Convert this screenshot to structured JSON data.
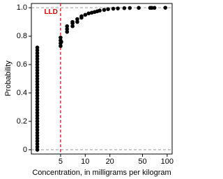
{
  "chart_data": {
    "type": "scatter",
    "x_label": "Concentration, in milligrams per kilogram",
    "y_label": "Probability",
    "log_x": true,
    "color": "#000000",
    "x": [
      2.6,
      2.6,
      2.6,
      2.6,
      2.6,
      2.6,
      2.6,
      2.6,
      2.6,
      2.6,
      2.6,
      2.6,
      2.6,
      2.6,
      2.6,
      2.6,
      2.6,
      2.6,
      2.6,
      2.6,
      2.6,
      2.6,
      2.6,
      2.6,
      2.6,
      2.6,
      2.6,
      2.6,
      2.6,
      2.6,
      2.6,
      2.6,
      2.6,
      2.6,
      2.6,
      2.6,
      2.6,
      5,
      5,
      5,
      5,
      5.1,
      6,
      6,
      6,
      7,
      7,
      7,
      8,
      8,
      9,
      9,
      10,
      11,
      12,
      13,
      14,
      15,
      17,
      19,
      22,
      25,
      30,
      35,
      45,
      62,
      65,
      70,
      95
    ],
    "y": [
      0,
      0.02,
      0.04,
      0.06,
      0.08,
      0.1,
      0.12,
      0.14,
      0.16,
      0.18,
      0.2,
      0.22,
      0.24,
      0.26,
      0.28,
      0.3,
      0.32,
      0.34,
      0.36,
      0.38,
      0.4,
      0.42,
      0.44,
      0.46,
      0.48,
      0.5,
      0.52,
      0.54,
      0.56,
      0.58,
      0.6,
      0.62,
      0.64,
      0.66,
      0.68,
      0.7,
      0.72,
      0.73,
      0.75,
      0.77,
      0.79,
      0.76,
      0.83,
      0.85,
      0.87,
      0.87,
      0.89,
      0.9,
      0.9,
      0.92,
      0.93,
      0.94,
      0.95,
      0.96,
      0.965,
      0.97,
      0.975,
      0.98,
      0.985,
      0.99,
      0.993,
      0.995,
      0.997,
      0.998,
      0.999,
      0.999,
      0.999,
      0.999,
      1
    ],
    "xlim": [
      2.2,
      115
    ],
    "ylim": [
      -0.03,
      1.03
    ],
    "xticks": [
      5,
      10,
      20,
      50,
      100
    ],
    "yticks": [
      0,
      0.2,
      0.4,
      0.6,
      0.8,
      {
        "value": 1,
        "label": "1.0"
      }
    ],
    "hlines": [
      0,
      1
    ],
    "lld_line": {
      "x": 5,
      "label": "LLD",
      "color": "#cc0000"
    }
  }
}
